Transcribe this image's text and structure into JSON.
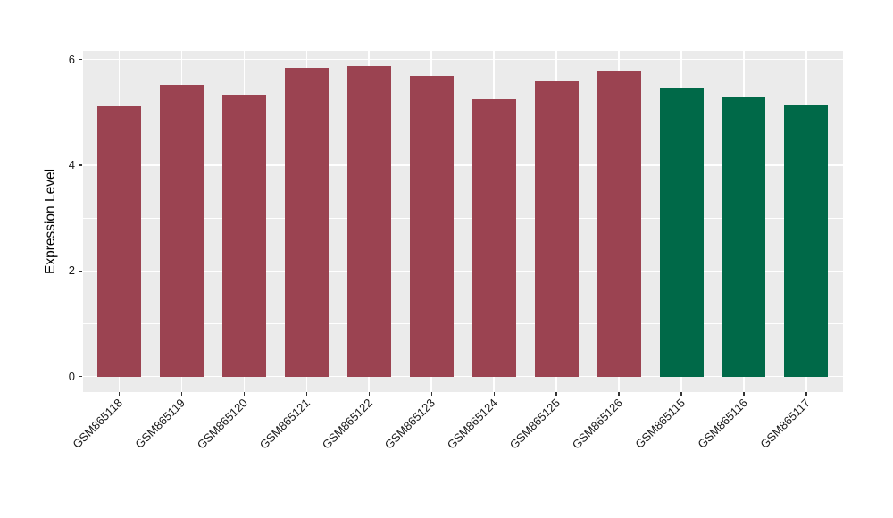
{
  "figure": {
    "background": "#FFFFFF",
    "panel_background": "#EBEBEB",
    "gridline_color": "#FFFFFF",
    "tick_color": "#333333",
    "axis_text_color": "#1A1A1A"
  },
  "chart_data": {
    "type": "bar",
    "title": "",
    "xlabel": "",
    "ylabel": "Expression Level",
    "categories": [
      "GSM865118",
      "GSM865119",
      "GSM865120",
      "GSM865121",
      "GSM865122",
      "GSM865123",
      "GSM865124",
      "GSM865125",
      "GSM865126",
      "GSM865115",
      "GSM865116",
      "GSM865117"
    ],
    "values": [
      5.11,
      5.52,
      5.34,
      5.84,
      5.88,
      5.69,
      5.25,
      5.59,
      5.77,
      5.45,
      5.28,
      5.13
    ],
    "bar_colors": [
      "#9B4351",
      "#9B4351",
      "#9B4351",
      "#9B4351",
      "#9B4351",
      "#9B4351",
      "#9B4351",
      "#9B4351",
      "#9B4351",
      "#006948",
      "#006948",
      "#006948"
    ],
    "group_colors": {
      "samples_1": "#9B4351",
      "samples_2": "#006948"
    },
    "ylim": [
      0,
      6
    ],
    "yticks": [
      0,
      2,
      4,
      6
    ],
    "yticks_minor": [
      1,
      3,
      5
    ],
    "grid": true,
    "legend": "none",
    "bar_width_fraction": 0.7,
    "x_label_rotation_deg": 45
  }
}
